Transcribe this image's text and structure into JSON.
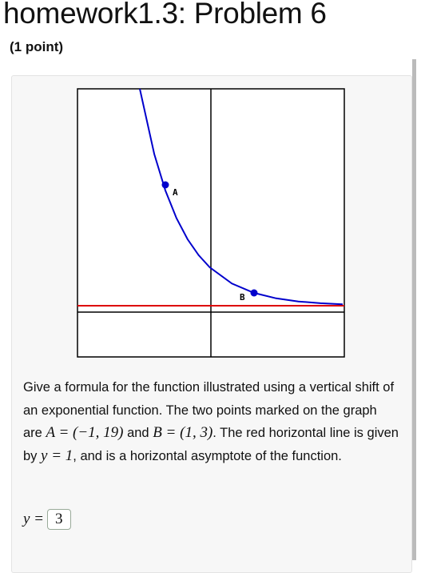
{
  "header": {
    "title": "homework1.3: Problem 6",
    "points": "(1 point)"
  },
  "graph": {
    "labels": [
      "A",
      "B"
    ]
  },
  "problem": {
    "text": [
      "Give a formula for the function illustrated using a vertical shift of an exponential function. The two points marked on the graph are ",
      "A = (−1, 19)",
      " and ",
      "B = (1, 3)",
      ". The red horizontal line is given by ",
      "y = 1",
      ", and is a horizontal asymptote of the function."
    ]
  },
  "answer": {
    "lhs": "y =",
    "value": "3"
  }
}
